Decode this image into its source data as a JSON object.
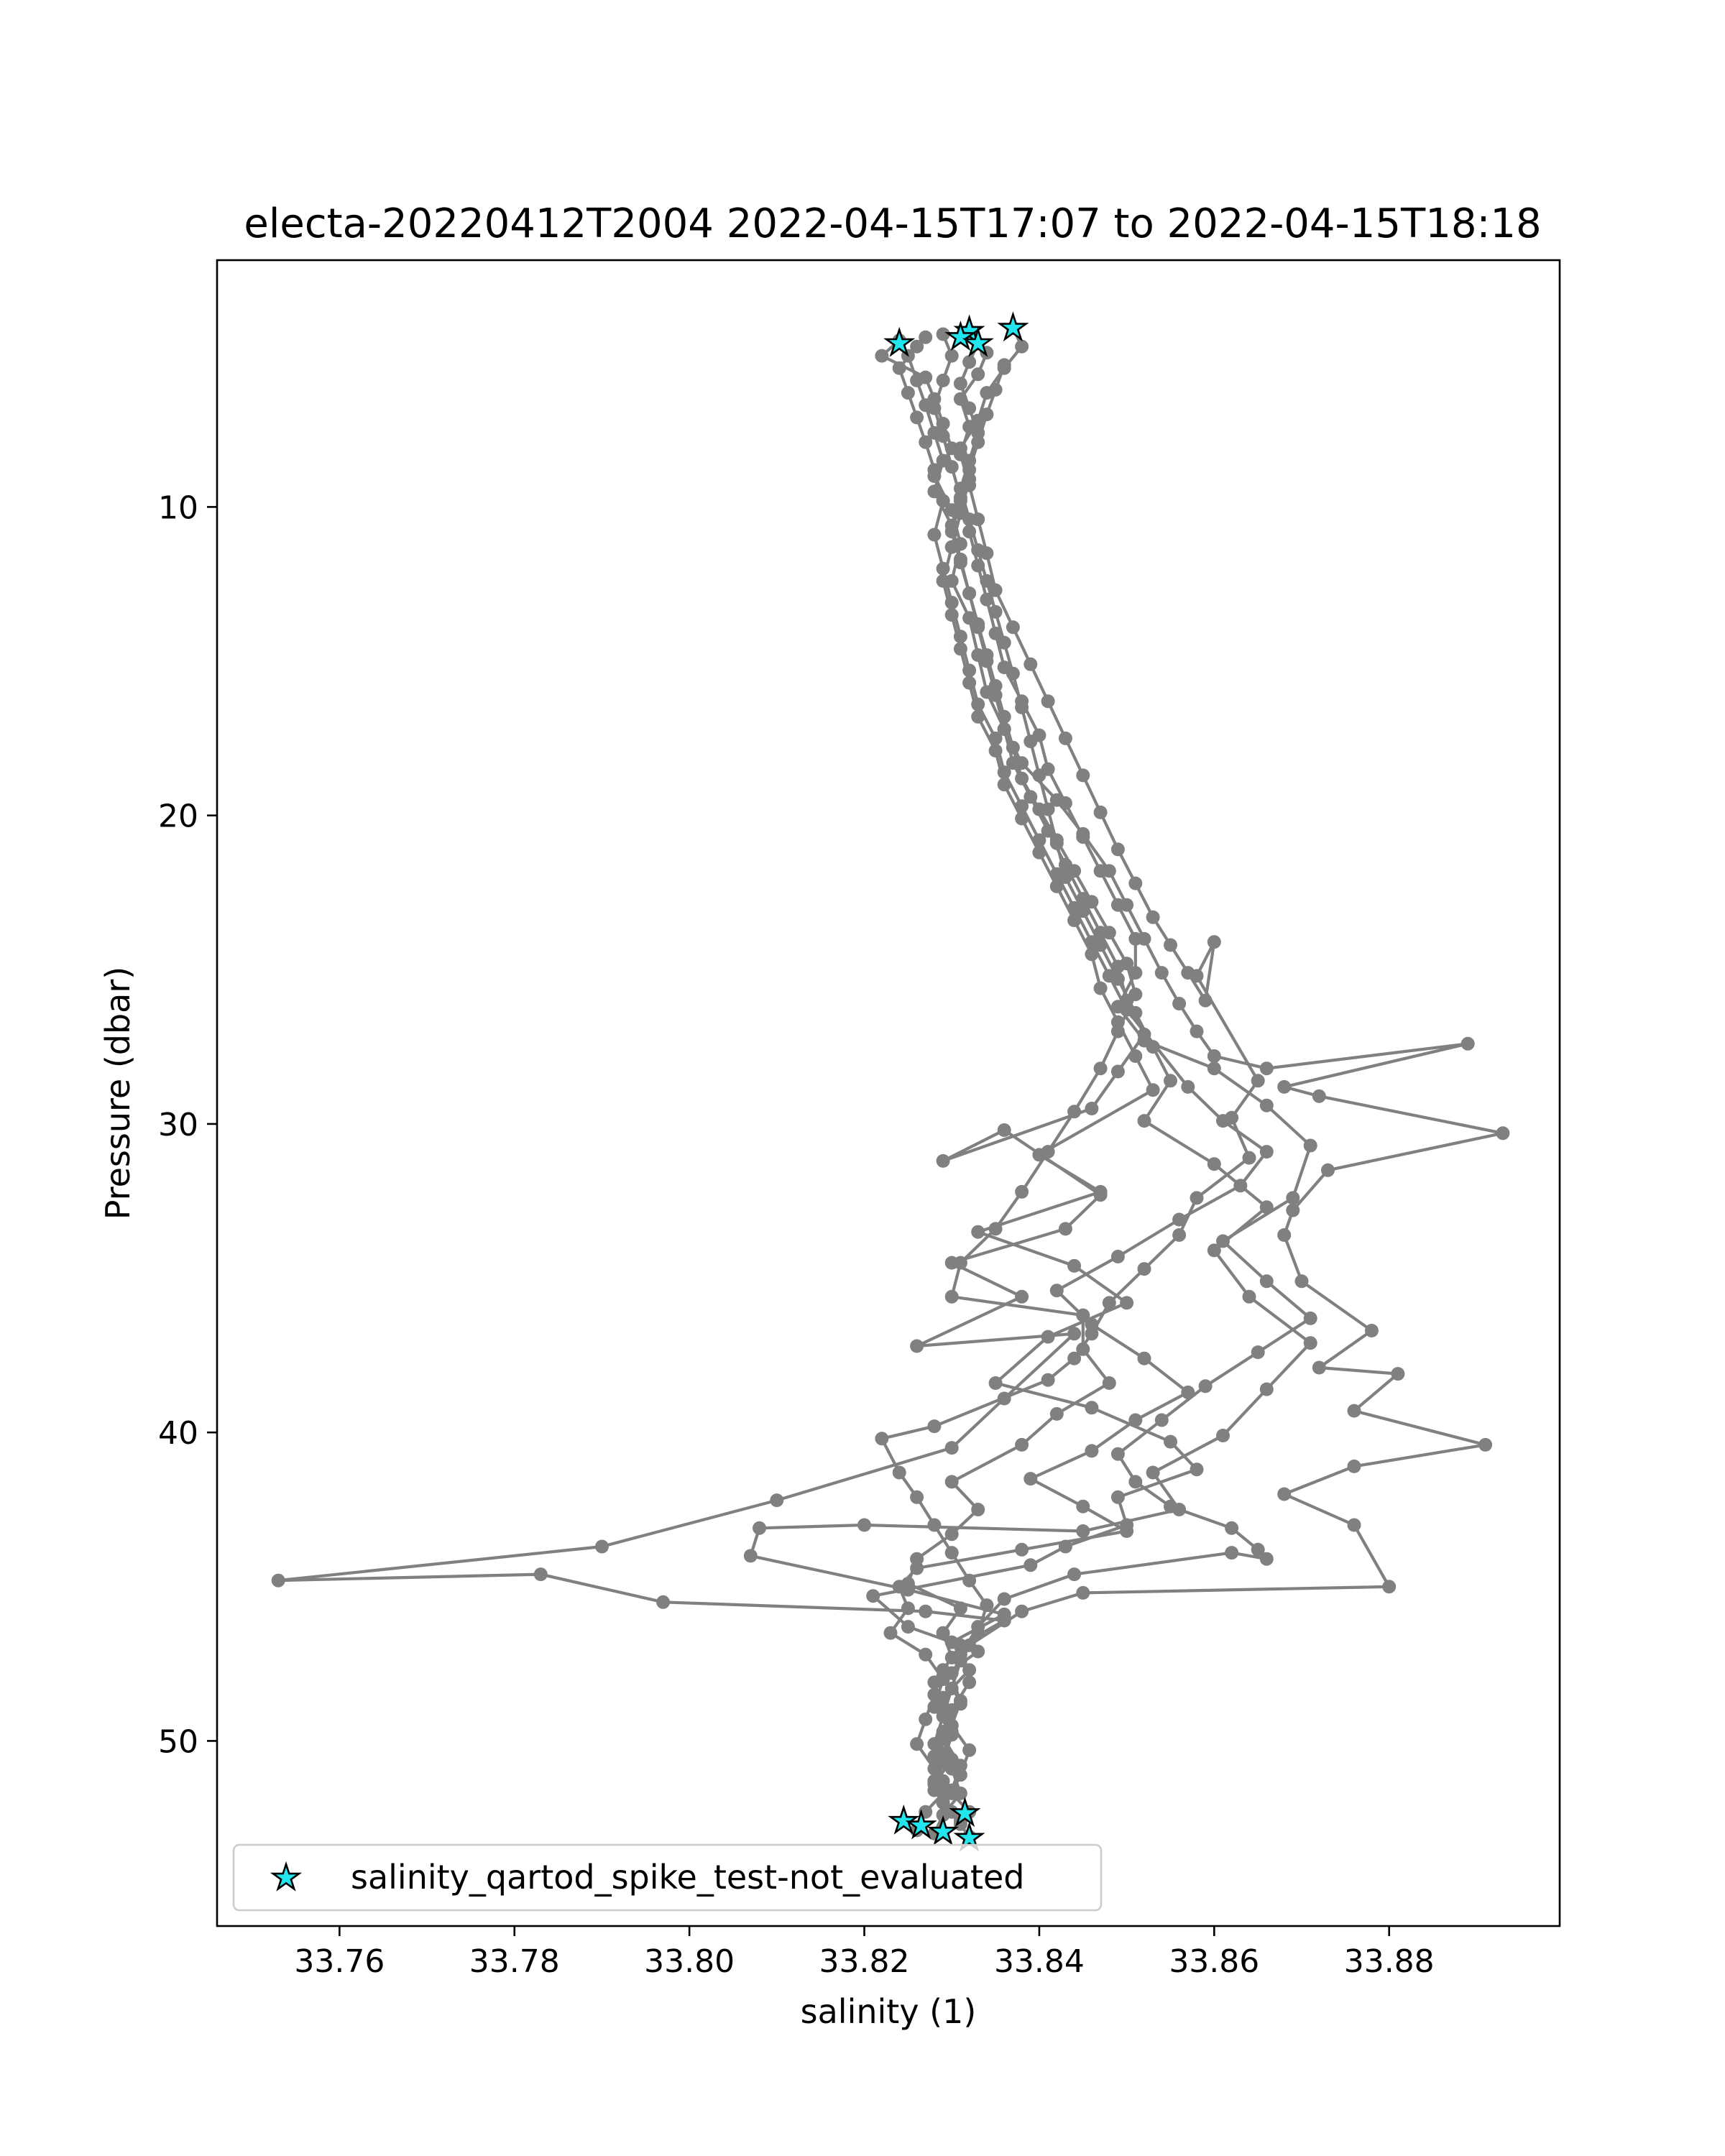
{
  "chart_data": {
    "type": "scatter",
    "title": "electa-20220412T2004 2022-04-15T17:07 to 2022-04-15T18:18",
    "xlabel": "salinity (1)",
    "ylabel": "Pressure (dbar)",
    "xlim": [
      33.746,
      33.8995
    ],
    "ylim": [
      56.0,
      2.0
    ],
    "y_inverted": true,
    "grid": false,
    "legend_position": "lower-left",
    "x_ticks": [
      33.76,
      33.78,
      33.8,
      33.82,
      33.84,
      33.86,
      33.88
    ],
    "x_tick_labels": [
      "33.76",
      "33.78",
      "33.80",
      "33.82",
      "33.84",
      "33.86",
      "33.88"
    ],
    "y_ticks": [
      10,
      20,
      30,
      40,
      50
    ],
    "y_tick_labels": [
      "10",
      "20",
      "30",
      "40",
      "50"
    ],
    "colors": {
      "line": "#808080",
      "star_fill": "#22e5ee",
      "star_edge": "#000000",
      "frame": "#000000"
    },
    "series": [
      {
        "style": "line-markers",
        "color": "#808080",
        "profiles": [
          {
            "x": [
              33.824,
              33.822,
              33.827,
              33.828,
              33.829,
              33.83,
              33.828,
              33.83,
              33.831,
              33.83,
              33.832,
              33.833,
              33.834,
              33.836,
              33.838,
              33.842,
              33.845,
              33.848,
              33.85,
              33.852,
              33.854,
              33.856,
              33.858,
              33.86,
              33.866,
              33.889,
              33.868,
              33.872,
              33.893,
              33.873,
              33.869,
              33.868,
              33.87,
              33.878,
              33.872,
              33.881,
              33.876,
              33.891,
              33.876,
              33.868,
              33.876,
              33.88,
              33.845,
              33.838,
              33.832,
              33.83,
              33.831,
              33.829,
              33.83,
              33.828,
              33.829,
              33.832
            ],
            "y": [
              4.6,
              5.1,
              5.8,
              6.5,
              7.3,
              8.1,
              9.0,
              10.1,
              11.2,
              12.4,
              13.6,
              14.8,
              16.0,
              17.2,
              18.3,
              19.5,
              20.6,
              21.8,
              22.9,
              24.0,
              25.1,
              26.1,
              27.0,
              27.8,
              28.2,
              27.4,
              28.8,
              29.1,
              30.3,
              31.5,
              32.8,
              33.6,
              35.1,
              36.7,
              37.9,
              38.1,
              39.3,
              40.4,
              41.1,
              42.0,
              43.0,
              45.0,
              45.2,
              45.8,
              46.9,
              47.8,
              48.8,
              49.7,
              50.6,
              51.4,
              52.0,
              53.1
            ]
          },
          {
            "x": [
              33.832,
              33.834,
              33.833,
              33.831,
              33.832,
              33.831,
              33.832,
              33.833,
              33.834,
              33.835,
              33.837,
              33.839,
              33.841,
              33.843,
              33.845,
              33.847,
              33.849,
              33.851,
              33.853,
              33.855,
              33.857,
              33.859,
              33.86,
              33.858,
              33.865,
              33.862,
              33.864,
              33.858,
              33.856,
              33.852,
              33.848,
              33.846,
              33.844,
              33.841,
              33.828,
              33.822,
              33.824,
              33.826,
              33.828,
              33.83,
              33.832,
              33.834,
              33.833,
              33.831,
              33.83,
              33.829,
              33.828,
              33.83,
              33.831,
              33.829,
              33.828
            ],
            "y": [
              4.3,
              5.0,
              5.7,
              6.5,
              7.4,
              8.3,
              9.3,
              10.4,
              11.5,
              12.7,
              13.9,
              15.1,
              16.3,
              17.5,
              18.7,
              19.9,
              21.1,
              22.2,
              23.3,
              24.2,
              25.1,
              26.0,
              24.1,
              25.2,
              28.6,
              29.8,
              31.1,
              32.4,
              33.6,
              34.7,
              35.8,
              36.8,
              37.6,
              38.3,
              39.8,
              40.2,
              41.3,
              42.1,
              43.0,
              43.9,
              44.8,
              45.6,
              46.5,
              47.4,
              48.3,
              49.2,
              50.1,
              50.9,
              51.7,
              52.4,
              53.0
            ]
          },
          {
            "x": [
              33.827,
              33.825,
              33.826,
              33.827,
              33.828,
              33.829,
              33.828,
              33.83,
              33.831,
              33.832,
              33.833,
              33.834,
              33.835,
              33.836,
              33.837,
              33.839,
              33.841,
              33.843,
              33.845,
              33.847,
              33.849,
              33.85,
              33.852,
              33.849,
              33.846,
              33.829,
              33.836,
              33.847,
              33.843,
              33.83,
              33.838,
              33.826,
              33.844,
              33.836,
              33.83,
              33.81,
              33.79,
              33.753,
              33.783,
              33.797,
              33.827,
              33.836,
              33.831,
              33.829,
              33.828,
              33.827,
              33.826,
              33.828,
              33.829,
              33.827,
              33.826
            ],
            "y": [
              4.5,
              5.1,
              5.9,
              6.7,
              7.6,
              8.5,
              9.5,
              10.6,
              11.7,
              12.8,
              13.9,
              15.0,
              16.1,
              17.2,
              18.3,
              19.4,
              20.5,
              21.6,
              22.7,
              23.8,
              24.9,
              26.0,
              27.1,
              28.3,
              29.5,
              31.2,
              30.2,
              32.3,
              33.4,
              34.5,
              35.6,
              37.2,
              36.8,
              38.9,
              40.5,
              42.2,
              43.7,
              44.8,
              44.6,
              45.5,
              45.8,
              46.1,
              46.9,
              47.7,
              48.5,
              49.3,
              50.1,
              50.9,
              51.7,
              52.3,
              52.9
            ]
          },
          {
            "x": [
              33.837,
              33.838,
              33.836,
              33.834,
              33.833,
              33.831,
              33.832,
              33.831,
              33.83,
              33.829,
              33.83,
              33.831,
              33.832,
              33.833,
              33.835,
              33.836,
              33.838,
              33.84,
              33.842,
              33.844,
              33.846,
              33.847,
              33.849,
              33.851,
              33.853,
              33.84,
              33.847,
              33.833,
              33.844,
              33.85,
              33.841,
              33.835,
              33.846,
              33.855,
              33.858,
              33.849,
              33.85,
              33.843,
              33.839,
              33.821,
              33.825,
              33.833,
              33.829,
              33.831,
              33.83,
              33.832,
              33.831,
              33.83,
              33.832,
              33.831
            ],
            "y": [
              4.2,
              4.8,
              5.5,
              6.3,
              7.2,
              8.1,
              9.1,
              10.2,
              11.3,
              12.4,
              13.5,
              14.6,
              15.7,
              16.8,
              17.9,
              19.0,
              20.1,
              21.2,
              22.3,
              23.4,
              24.5,
              25.6,
              26.7,
              27.8,
              28.9,
              31.0,
              32.2,
              33.5,
              34.6,
              35.8,
              36.9,
              38.4,
              39.2,
              40.3,
              41.2,
              42.1,
              43.0,
              43.7,
              44.3,
              45.3,
              46.3,
              47.1,
              47.9,
              48.7,
              49.5,
              50.3,
              51.1,
              51.7,
              52.3,
              52.6
            ]
          },
          {
            "x": [
              33.826,
              33.824,
              33.825,
              33.826,
              33.827,
              33.828,
              33.829,
              33.828,
              33.829,
              33.83,
              33.831,
              33.832,
              33.833,
              33.835,
              33.836,
              33.838,
              33.84,
              33.842,
              33.844,
              33.846,
              33.848,
              33.85,
              33.857,
              33.861,
              33.866,
              33.863,
              33.856,
              33.849,
              33.842,
              33.846,
              33.852,
              33.857,
              33.851,
              33.846,
              33.839,
              33.845,
              33.85,
              33.838,
              33.826,
              33.824,
              33.825,
              33.823,
              33.827,
              33.829,
              33.828,
              33.83,
              33.829,
              33.828,
              33.83
            ],
            "y": [
              4.8,
              5.5,
              6.3,
              7.1,
              7.9,
              8.8,
              9.8,
              10.9,
              12.0,
              13.1,
              14.2,
              15.3,
              16.4,
              17.5,
              18.6,
              19.7,
              20.8,
              21.9,
              23.0,
              24.1,
              25.2,
              26.3,
              28.8,
              29.9,
              30.9,
              32.0,
              33.1,
              34.3,
              35.4,
              36.5,
              37.6,
              38.7,
              39.6,
              40.6,
              41.5,
              42.4,
              43.2,
              43.8,
              44.4,
              45.0,
              45.7,
              46.5,
              47.2,
              48.0,
              48.9,
              49.8,
              50.7,
              51.6,
              52.3
            ]
          },
          {
            "x": [
              33.829,
              33.83,
              33.829,
              33.828,
              33.829,
              33.83,
              33.831,
              33.832,
              33.833,
              33.834,
              33.835,
              33.836,
              33.838,
              33.84,
              33.841,
              33.843,
              33.845,
              33.847,
              33.849,
              33.851,
              33.851,
              33.849,
              33.852,
              33.86,
              33.866,
              33.871,
              33.869,
              33.861,
              33.866,
              33.871,
              33.865,
              33.859,
              33.854,
              33.849,
              33.851,
              33.855,
              33.862,
              33.865,
              33.866,
              33.862,
              33.844,
              33.836,
              33.833,
              33.831,
              33.832,
              33.83,
              33.829,
              33.831,
              33.83
            ],
            "y": [
              4.4,
              5.1,
              5.9,
              6.8,
              7.7,
              8.7,
              9.7,
              10.8,
              11.9,
              13.0,
              14.1,
              15.2,
              16.3,
              17.4,
              18.5,
              19.6,
              20.7,
              21.8,
              22.9,
              24.0,
              25.1,
              26.2,
              27.3,
              28.2,
              29.4,
              30.7,
              32.4,
              33.8,
              35.1,
              36.3,
              37.4,
              38.5,
              39.6,
              40.7,
              41.6,
              42.4,
              43.1,
              43.8,
              44.1,
              43.9,
              44.6,
              45.4,
              46.3,
              47.2,
              48.1,
              49.0,
              49.9,
              50.8,
              51.6
            ]
          },
          {
            "x": [
              33.833,
              33.832,
              33.831,
              33.832,
              33.833,
              33.832,
              33.831,
              33.832,
              33.833,
              33.834,
              33.835,
              33.836,
              33.837,
              33.838,
              33.839,
              33.84,
              33.841,
              33.842,
              33.843,
              33.845,
              33.847,
              33.849,
              33.851,
              33.853,
              33.855,
              33.852,
              33.86,
              33.866,
              33.86,
              33.864,
              33.871,
              33.866,
              33.861,
              33.853,
              33.856,
              33.845,
              33.82,
              33.808,
              33.807,
              33.825,
              33.836,
              33.83,
              33.832,
              33.829,
              33.83,
              33.829,
              33.828,
              33.829,
              33.831
            ],
            "y": [
              4.7,
              5.3,
              6.0,
              6.8,
              7.6,
              8.5,
              9.4,
              10.4,
              11.4,
              12.4,
              13.4,
              14.4,
              15.4,
              16.5,
              17.6,
              18.7,
              19.8,
              20.9,
              22.0,
              23.1,
              24.2,
              25.3,
              26.4,
              27.5,
              28.6,
              29.9,
              31.3,
              32.7,
              34.1,
              35.6,
              37.1,
              38.6,
              40.1,
              41.3,
              42.5,
              43.2,
              43.0,
              43.1,
              44.0,
              45.1,
              45.9,
              46.8,
              47.7,
              48.6,
              49.5,
              50.4,
              51.3,
              52.0,
              52.7
            ]
          },
          {
            "x": [
              33.836,
              33.835,
              33.834,
              33.833,
              33.832,
              33.831,
              33.83,
              33.831,
              33.832,
              33.833,
              33.834,
              33.835,
              33.836,
              33.837,
              33.838,
              33.84,
              33.842,
              33.844,
              33.846,
              33.848,
              33.85,
              33.851,
              33.849,
              33.847,
              33.844,
              33.841,
              33.838,
              33.835,
              33.831,
              33.83,
              33.845,
              33.845,
              33.848,
              33.842,
              33.838,
              33.83,
              33.833,
              33.83,
              33.826,
              33.825,
              33.831,
              33.829,
              33.83,
              33.828,
              33.829,
              33.83,
              33.828,
              33.829
            ],
            "y": [
              5.4,
              6.2,
              7.0,
              7.9,
              8.8,
              9.8,
              10.8,
              11.8,
              12.8,
              13.8,
              14.8,
              15.8,
              16.8,
              17.8,
              18.8,
              19.8,
              20.8,
              21.8,
              22.8,
              23.8,
              24.8,
              25.8,
              27.0,
              28.2,
              29.6,
              30.9,
              32.2,
              33.4,
              34.5,
              35.6,
              36.2,
              37.3,
              38.4,
              39.4,
              40.4,
              41.6,
              42.5,
              43.3,
              44.1,
              44.9,
              45.7,
              46.5,
              47.3,
              48.1,
              48.9,
              49.7,
              50.5,
              51.3
            ]
          }
        ]
      },
      {
        "name": "salinity_qartod_spike_test-not_evaluated",
        "style": "star",
        "color": "#22e5ee",
        "x": [
          33.824,
          33.832,
          33.831,
          33.833,
          33.837,
          33.8245,
          33.8265,
          33.829,
          33.8315,
          33.832
        ],
        "y": [
          4.7,
          4.3,
          4.5,
          4.7,
          4.2,
          52.6,
          52.75,
          52.95,
          52.35,
          53.15
        ]
      }
    ]
  }
}
